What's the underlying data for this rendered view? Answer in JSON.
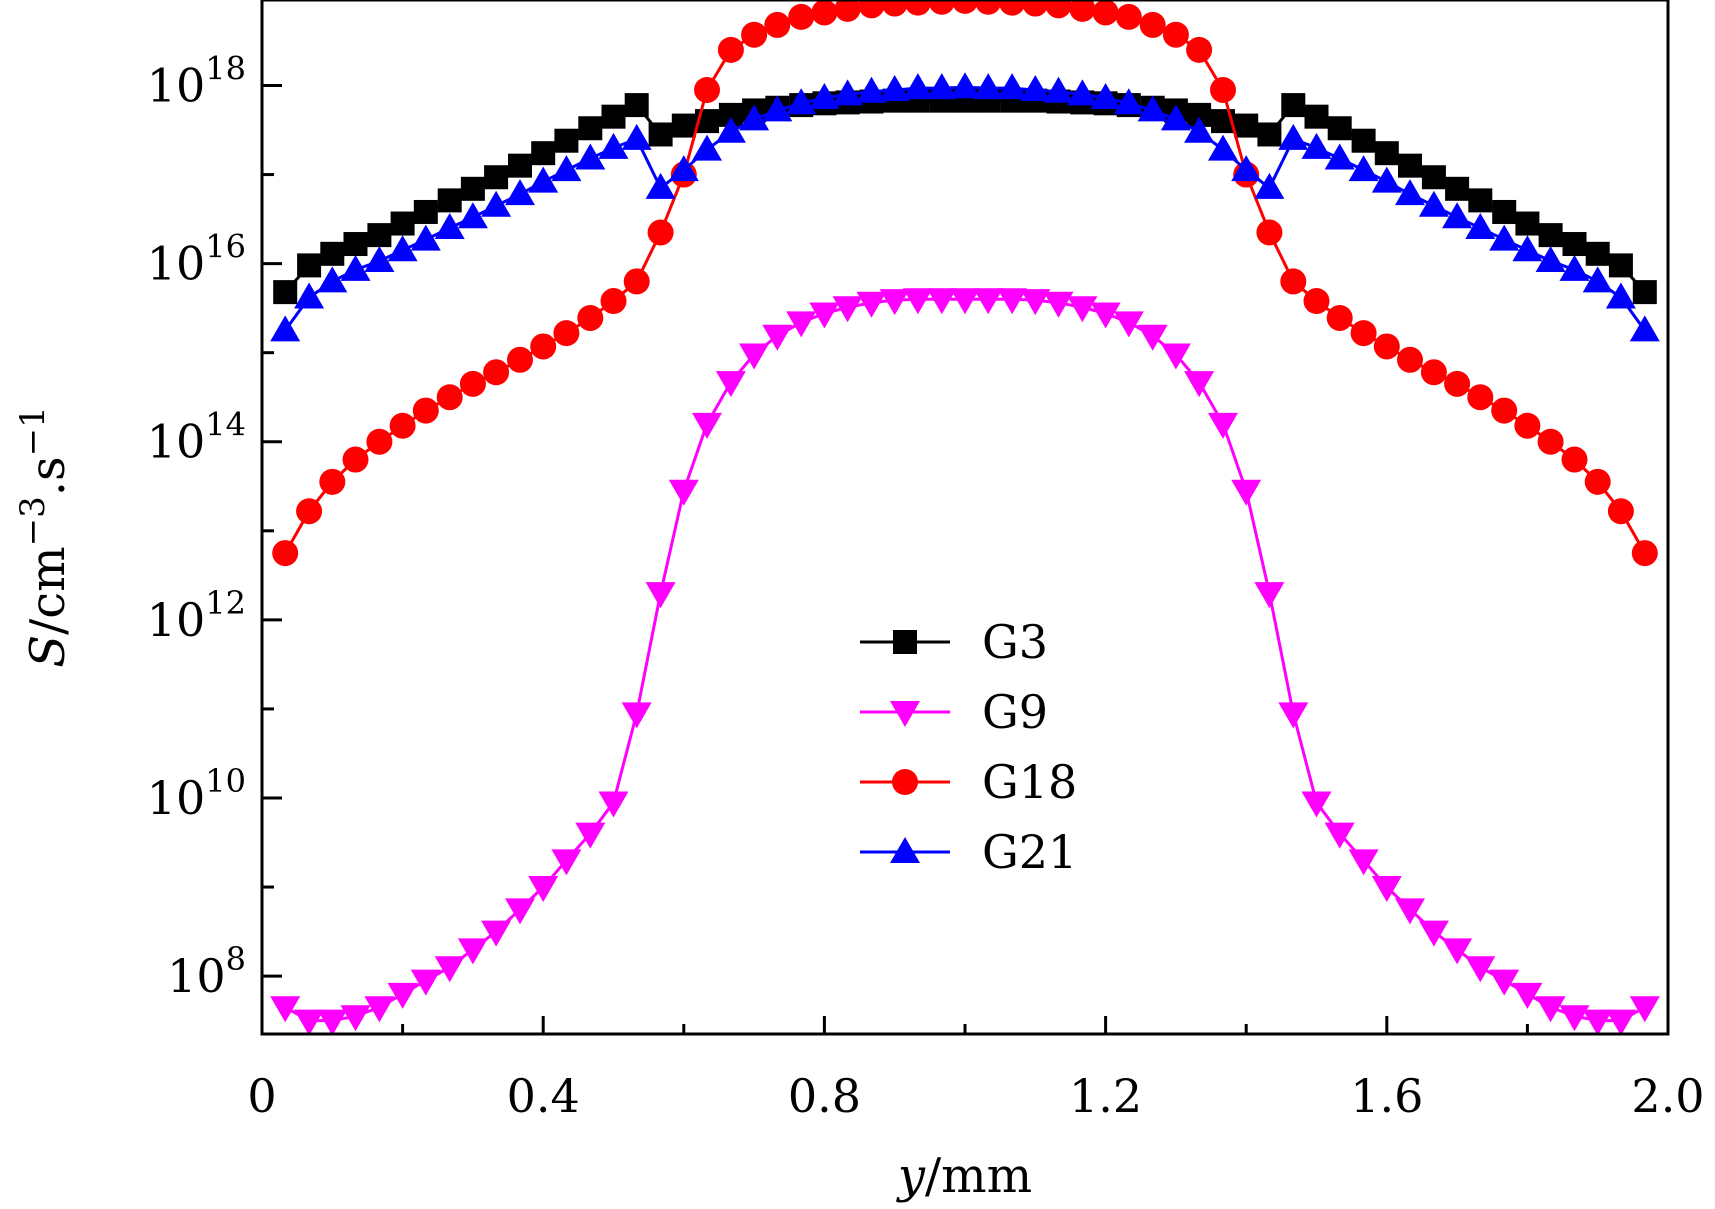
{
  "chart_data": {
    "type": "line",
    "title": "",
    "xlabel": {
      "var": "y",
      "unit": "/mm"
    },
    "ylabel": {
      "var": "S",
      "unit": "/cm",
      "exp1": "−3",
      "mid": ".s",
      "exp2": "−1"
    },
    "xlim": [
      0,
      2.0
    ],
    "ylim_log10": [
      7.35,
      18.96
    ],
    "y_scale": "log",
    "x_ticks": [
      {
        "value": 0,
        "label": "0"
      },
      {
        "value": 0.4,
        "label": "0.4"
      },
      {
        "value": 0.8,
        "label": "0.8"
      },
      {
        "value": 1.2,
        "label": "1.2"
      },
      {
        "value": 1.6,
        "label": "1.6"
      },
      {
        "value": 2.0,
        "label": "2.0"
      }
    ],
    "y_ticks": [
      {
        "exp": 8,
        "base": "10",
        "sup": "8"
      },
      {
        "exp": 10,
        "base": "10",
        "sup": "10"
      },
      {
        "exp": 12,
        "base": "10",
        "sup": "12"
      },
      {
        "exp": 14,
        "base": "10",
        "sup": "14"
      },
      {
        "exp": 16,
        "base": "10",
        "sup": "16"
      },
      {
        "exp": 18,
        "base": "10",
        "sup": "18"
      }
    ],
    "legend_position": "center",
    "x": [
      0.033,
      0.067,
      0.1,
      0.133,
      0.167,
      0.2,
      0.233,
      0.267,
      0.3,
      0.333,
      0.367,
      0.4,
      0.433,
      0.467,
      0.5,
      0.533,
      0.567,
      0.6,
      0.633,
      0.667,
      0.7,
      0.733,
      0.767,
      0.8,
      0.833,
      0.867,
      0.9,
      0.933,
      0.967,
      1.0,
      1.033,
      1.067,
      1.1,
      1.133,
      1.167,
      1.2,
      1.233,
      1.267,
      1.3,
      1.333,
      1.367,
      1.4,
      1.433,
      1.467,
      1.5,
      1.533,
      1.567,
      1.6,
      1.633,
      1.667,
      1.7,
      1.733,
      1.767,
      1.8,
      1.833,
      1.867,
      1.9,
      1.933,
      1.967
    ],
    "series": [
      {
        "name": "G3",
        "color": "#000000",
        "marker": "square",
        "log10_values": [
          15.68,
          15.98,
          16.11,
          16.22,
          16.32,
          16.45,
          16.58,
          16.71,
          16.84,
          16.97,
          17.1,
          17.24,
          17.38,
          17.52,
          17.65,
          17.78,
          17.45,
          17.55,
          17.6,
          17.67,
          17.72,
          17.75,
          17.78,
          17.8,
          17.81,
          17.82,
          17.83,
          17.83,
          17.83,
          17.83,
          17.83,
          17.83,
          17.83,
          17.82,
          17.81,
          17.8,
          17.78,
          17.75,
          17.72,
          17.67,
          17.6,
          17.55,
          17.45,
          17.78,
          17.65,
          17.52,
          17.38,
          17.24,
          17.1,
          16.97,
          16.84,
          16.71,
          16.58,
          16.45,
          16.32,
          16.22,
          16.11,
          15.98,
          15.68
        ]
      },
      {
        "name": "G9",
        "color": "#ff00ff",
        "marker": "triangle-down",
        "log10_values": [
          7.65,
          7.5,
          7.5,
          7.55,
          7.65,
          7.8,
          7.95,
          8.1,
          8.3,
          8.5,
          8.75,
          9.0,
          9.3,
          9.6,
          9.95,
          10.95,
          12.3,
          13.45,
          14.2,
          14.67,
          14.98,
          15.19,
          15.34,
          15.44,
          15.51,
          15.56,
          15.59,
          15.6,
          15.6,
          15.6,
          15.6,
          15.6,
          15.59,
          15.56,
          15.51,
          15.44,
          15.34,
          15.19,
          14.98,
          14.67,
          14.2,
          13.45,
          12.3,
          10.95,
          9.95,
          9.6,
          9.3,
          9.0,
          8.75,
          8.5,
          8.3,
          8.1,
          7.95,
          7.8,
          7.65,
          7.55,
          7.5,
          7.5,
          7.65
        ]
      },
      {
        "name": "G18",
        "color": "#ff0000",
        "marker": "circle",
        "log10_values": [
          12.75,
          13.22,
          13.55,
          13.8,
          14.0,
          14.18,
          14.35,
          14.5,
          14.65,
          14.78,
          14.92,
          15.07,
          15.22,
          15.39,
          15.58,
          15.8,
          16.35,
          17.0,
          17.95,
          18.4,
          18.57,
          18.68,
          18.77,
          18.82,
          18.86,
          18.9,
          18.92,
          18.93,
          18.94,
          18.95,
          18.94,
          18.93,
          18.92,
          18.9,
          18.86,
          18.82,
          18.77,
          18.68,
          18.57,
          18.4,
          17.95,
          17.0,
          16.35,
          15.8,
          15.58,
          15.39,
          15.22,
          15.07,
          14.92,
          14.78,
          14.65,
          14.5,
          14.35,
          14.18,
          14.0,
          13.8,
          13.55,
          13.22,
          12.75
        ]
      },
      {
        "name": "G21",
        "color": "#0000ff",
        "marker": "triangle-up",
        "log10_values": [
          15.25,
          15.62,
          15.8,
          15.93,
          16.03,
          16.15,
          16.27,
          16.4,
          16.52,
          16.65,
          16.78,
          16.92,
          17.05,
          17.18,
          17.3,
          17.4,
          16.85,
          17.05,
          17.28,
          17.48,
          17.62,
          17.72,
          17.8,
          17.86,
          17.9,
          17.93,
          17.95,
          17.97,
          17.97,
          17.98,
          17.97,
          17.97,
          17.95,
          17.93,
          17.9,
          17.86,
          17.8,
          17.72,
          17.62,
          17.48,
          17.28,
          17.05,
          16.85,
          17.4,
          17.3,
          17.18,
          17.05,
          16.92,
          16.78,
          16.65,
          16.52,
          16.4,
          16.27,
          16.15,
          16.03,
          15.93,
          15.8,
          15.62,
          15.25
        ]
      }
    ]
  }
}
